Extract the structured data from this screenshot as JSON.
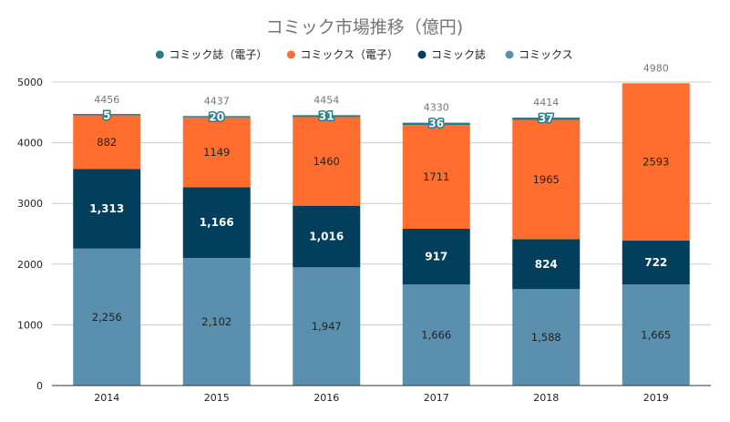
{
  "chart_data": {
    "type": "bar",
    "stacked": true,
    "title": "コミック市場推移（億円)",
    "categories": [
      "2014",
      "2015",
      "2016",
      "2017",
      "2018",
      "2019"
    ],
    "ylim": [
      0,
      5000
    ],
    "yticks": [
      0,
      1000,
      2000,
      3000,
      4000,
      5000
    ],
    "grid": true,
    "legend_position": "top",
    "series": [
      {
        "name": "コミックス",
        "color": "#5a90ad",
        "values": [
          2256,
          2102,
          1947,
          1666,
          1588,
          1665
        ],
        "labels": [
          "2,256",
          "2,102",
          "1,947",
          "1,666",
          "1,588",
          "1,665"
        ],
        "label_color": "#222222",
        "label_bold": false
      },
      {
        "name": "コミック誌",
        "color": "#023f5c",
        "values": [
          1313,
          1166,
          1016,
          917,
          824,
          722
        ],
        "labels": [
          "1,313",
          "1,166",
          "1,016",
          "917",
          "824",
          "722"
        ],
        "label_color": "#ffffff",
        "label_bold": true
      },
      {
        "name": "コミックス（電子）",
        "color": "#ff6d2f",
        "values": [
          882,
          1149,
          1460,
          1711,
          1965,
          2593
        ],
        "labels": [
          "882",
          "1149",
          "1460",
          "1711",
          "1965",
          "2593"
        ],
        "label_color": "#222222",
        "label_bold": false
      },
      {
        "name": "コミック誌（電子）",
        "color": "#277a86",
        "values": [
          5,
          20,
          31,
          36,
          37,
          0
        ],
        "labels": [
          "5",
          "20",
          "31",
          "36",
          "37",
          ""
        ],
        "label_color": "#ffffff",
        "label_bold": true,
        "label_outline": "#2a7f8c"
      }
    ],
    "totals": [
      "4456",
      "4437",
      "4454",
      "4330",
      "4414",
      "4980"
    ],
    "legend_order": [
      3,
      2,
      1,
      0
    ]
  }
}
